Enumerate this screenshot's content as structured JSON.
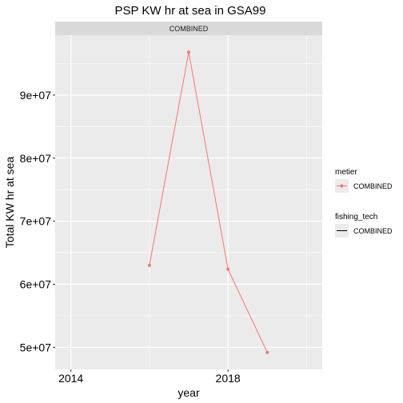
{
  "chart_data": {
    "type": "line",
    "title": "PSP KW hr at sea in GSA99",
    "facet_label": "COMBINED",
    "xlabel": "year",
    "ylabel": "Total KW hr at sea",
    "xlim": [
      2013.6,
      2020.4
    ],
    "ylim": [
      46500000,
      99500000
    ],
    "x_ticks": [
      2014,
      2018
    ],
    "x_tick_labels": [
      "2014",
      "2018"
    ],
    "y_ticks": [
      50000000,
      60000000,
      70000000,
      80000000,
      90000000
    ],
    "y_tick_labels": [
      "5e+07",
      "6e+07",
      "7e+07",
      "8e+07",
      "9e+07"
    ],
    "grid": true,
    "legend_position": "right",
    "series": [
      {
        "name": "COMBINED",
        "color": "#F8766D",
        "x": [
          2016,
          2017,
          2018,
          2019
        ],
        "y": [
          63000000,
          96800000,
          62400000,
          49200000
        ]
      }
    ]
  },
  "legend": {
    "metier_title": "metier",
    "metier_item": "COMBINED",
    "fishing_tech_title": "fishing_tech",
    "fishing_tech_item": "COMBINED"
  }
}
